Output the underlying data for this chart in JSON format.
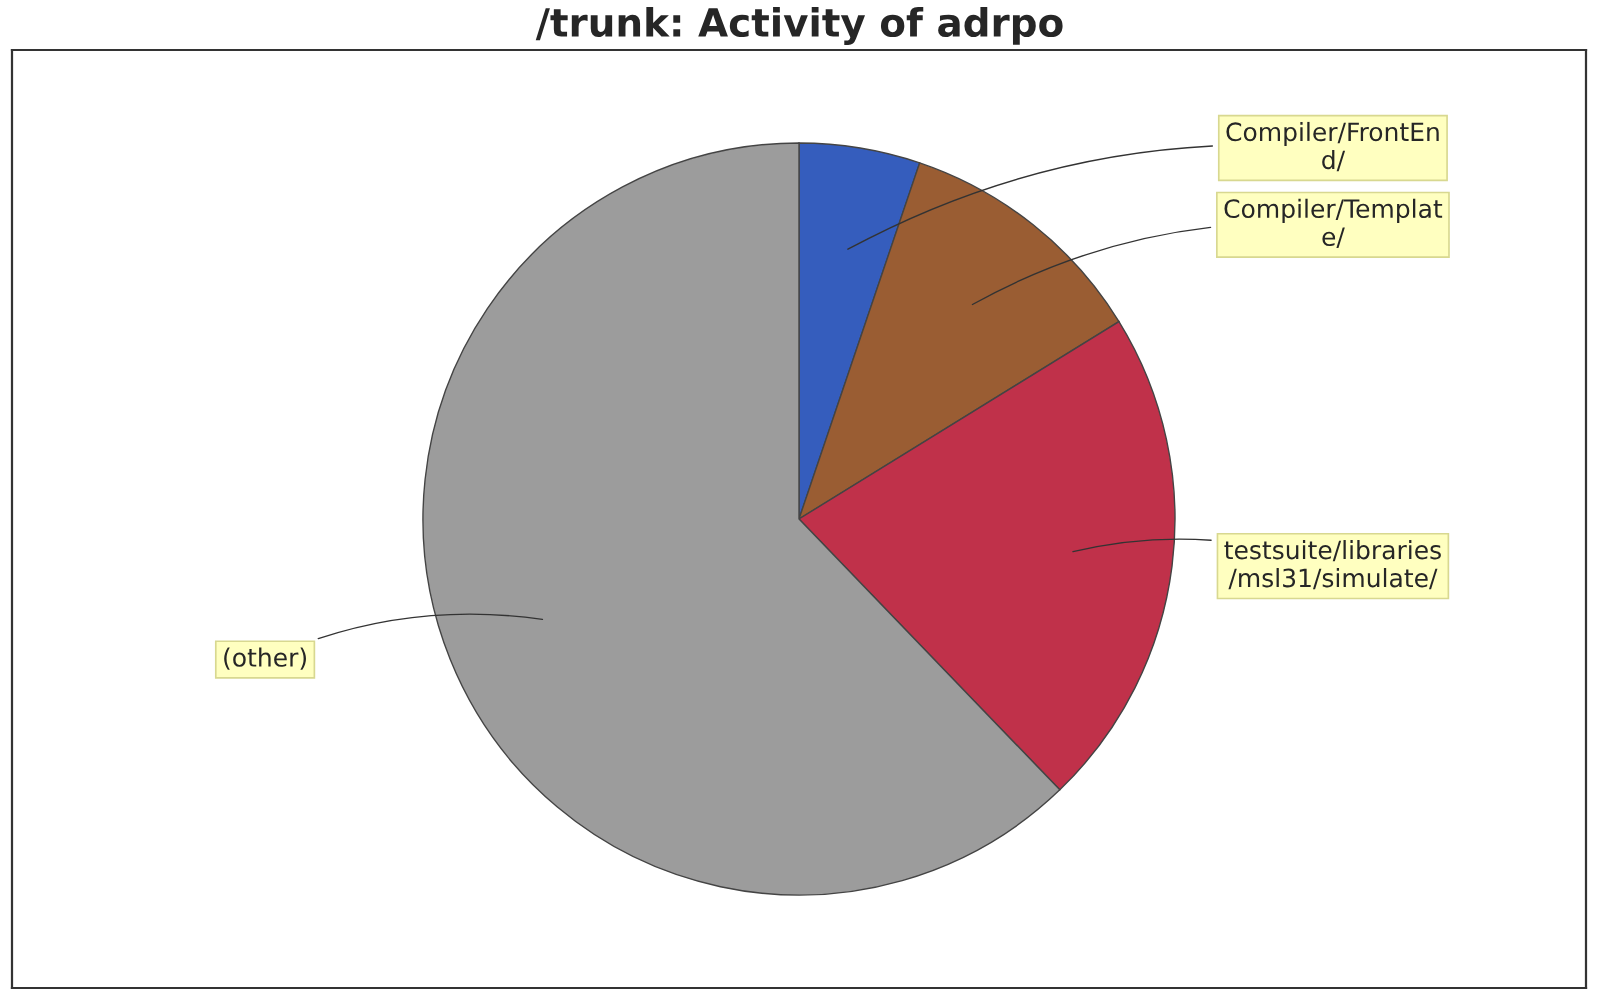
{
  "chart_data": {
    "type": "pie",
    "title": "/trunk: Activity of adrpo",
    "categories": [
      "Compiler/FrontEn\nd/",
      "Compiler/Templat\ne/",
      "testsuite/libraries\n/msl31/simulate/",
      "(other)"
    ],
    "values": [
      5.2,
      11.0,
      21.6,
      62.2
    ],
    "colors": [
      "#355dbd",
      "#9a5d33",
      "#c0314a",
      "#9c9c9c"
    ]
  }
}
